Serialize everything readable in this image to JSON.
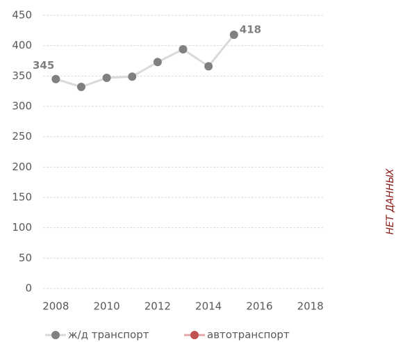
{
  "chart_data": {
    "type": "line",
    "x": [
      2008,
      2009,
      2010,
      2011,
      2012,
      2013,
      2014,
      2015
    ],
    "series": [
      {
        "name": "ж/д транспорт",
        "color": "#808080",
        "line_color": "#d9d9d9",
        "values": [
          345,
          332,
          347,
          349,
          373,
          394,
          366,
          418
        ]
      },
      {
        "name": "автотранспорт",
        "color": "#c0504d",
        "line_color": "#e6a5a5",
        "values": [
          null,
          null,
          null,
          null,
          null,
          null,
          null,
          null
        ]
      }
    ],
    "labeled_points": [
      0,
      7
    ],
    "xlim": [
      2007.5,
      2018.5
    ],
    "xticks": [
      2008,
      2010,
      2012,
      2014,
      2016,
      2018
    ],
    "ylim": [
      0,
      450
    ],
    "yticks": [
      0,
      50,
      100,
      150,
      200,
      250,
      300,
      350,
      400,
      450
    ],
    "grid": true,
    "annotation": "НЕТ ДАННЫХ"
  }
}
